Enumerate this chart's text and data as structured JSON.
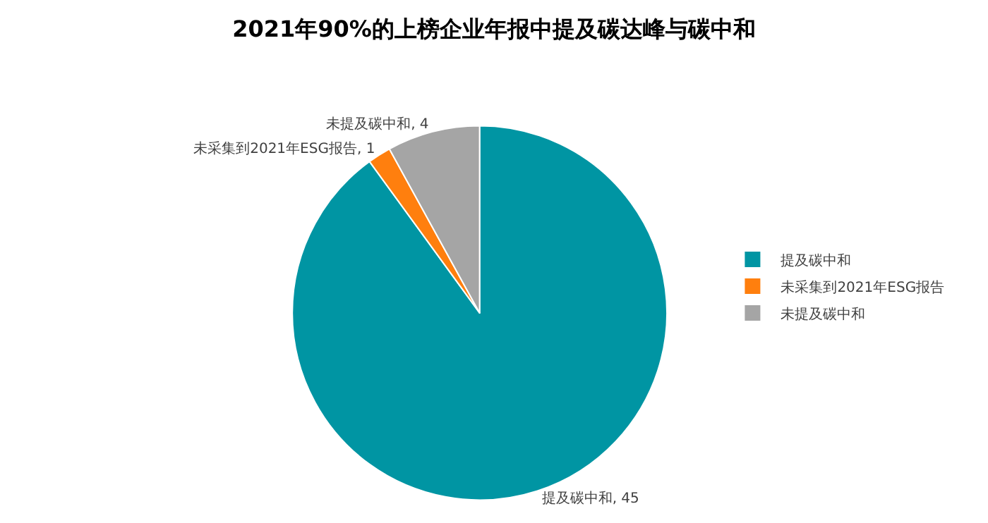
{
  "chart_data": {
    "type": "pie",
    "title": "2021年90%的上榜企业年报中提及碳达峰与碳中和",
    "categories": [
      "提及碳中和",
      "未采集到2021年ESG报告",
      "未提及碳中和"
    ],
    "values": [
      45,
      1,
      4
    ],
    "colors": [
      "#0095a3",
      "#ff7f0e",
      "#a5a5a5"
    ],
    "value_labels": [
      "提及碳中和, 45",
      "未采集到2021年ESG报告, 1",
      "未提及碳中和, 4"
    ],
    "legend": "right"
  }
}
